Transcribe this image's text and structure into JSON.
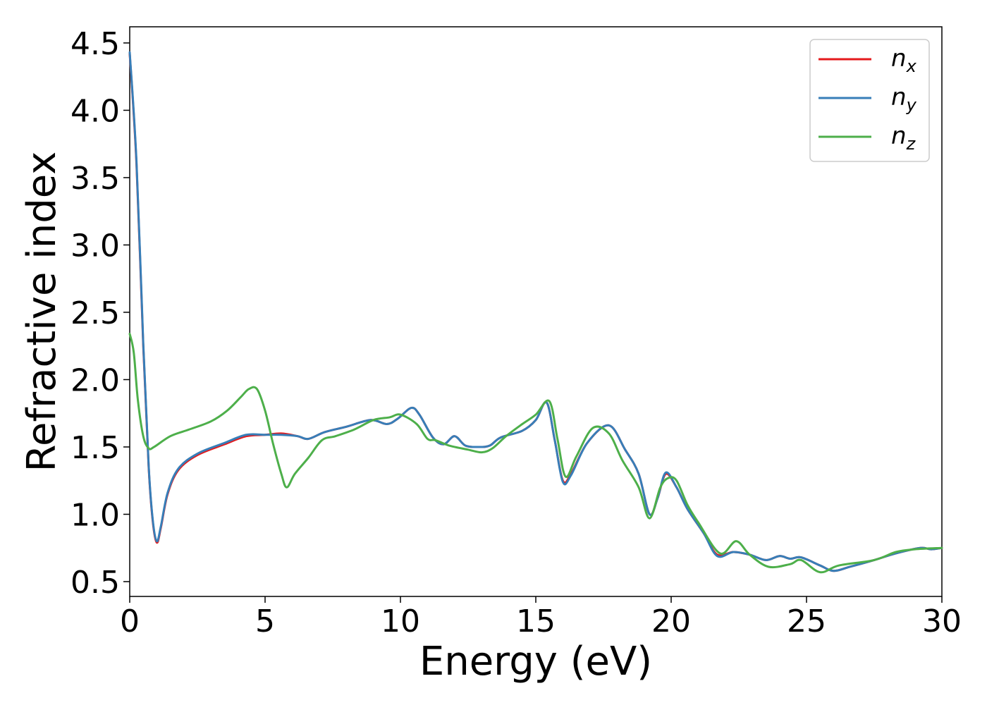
{
  "chart_data": {
    "type": "line",
    "xlabel": "Energy (eV)",
    "ylabel": "Refractive index",
    "xlim": [
      0,
      30
    ],
    "ylim": [
      0.39,
      4.62
    ],
    "xticks": [
      0,
      5,
      10,
      15,
      20,
      25,
      30
    ],
    "yticks": [
      0.5,
      1.0,
      1.5,
      2.0,
      2.5,
      3.0,
      3.5,
      4.0,
      4.5
    ],
    "grid": false,
    "legend_position": "top-right",
    "series": [
      {
        "name": "n",
        "subscript": "x",
        "color": "#e41a1c",
        "points": [
          [
            0,
            4.42
          ],
          [
            0.25,
            3.6
          ],
          [
            0.5,
            2.25
          ],
          [
            0.7,
            1.35
          ],
          [
            0.85,
            0.95
          ],
          [
            1.0,
            0.79
          ],
          [
            1.15,
            0.9
          ],
          [
            1.4,
            1.15
          ],
          [
            1.8,
            1.33
          ],
          [
            2.5,
            1.44
          ],
          [
            3.5,
            1.52
          ],
          [
            4.3,
            1.58
          ],
          [
            5.0,
            1.59
          ],
          [
            5.6,
            1.6
          ],
          [
            6.2,
            1.58
          ],
          [
            6.6,
            1.56
          ],
          [
            7.2,
            1.61
          ],
          [
            8.0,
            1.65
          ],
          [
            8.9,
            1.7
          ],
          [
            9.5,
            1.67
          ],
          [
            9.9,
            1.71
          ],
          [
            10.4,
            1.79
          ],
          [
            10.7,
            1.74
          ],
          [
            11.2,
            1.57
          ],
          [
            11.6,
            1.52
          ],
          [
            12.0,
            1.58
          ],
          [
            12.4,
            1.51
          ],
          [
            12.9,
            1.5
          ],
          [
            13.3,
            1.51
          ],
          [
            13.7,
            1.57
          ],
          [
            14.5,
            1.62
          ],
          [
            15.0,
            1.7
          ],
          [
            15.4,
            1.83
          ],
          [
            15.7,
            1.55
          ],
          [
            16.0,
            1.25
          ],
          [
            16.3,
            1.3
          ],
          [
            16.9,
            1.53
          ],
          [
            17.7,
            1.66
          ],
          [
            18.3,
            1.48
          ],
          [
            18.8,
            1.3
          ],
          [
            19.2,
            1.0
          ],
          [
            19.5,
            1.12
          ],
          [
            19.8,
            1.3
          ],
          [
            20.2,
            1.2
          ],
          [
            20.6,
            1.04
          ],
          [
            21.2,
            0.86
          ],
          [
            21.7,
            0.7
          ],
          [
            22.3,
            0.72
          ],
          [
            22.9,
            0.7
          ],
          [
            23.5,
            0.66
          ],
          [
            24.0,
            0.69
          ],
          [
            24.4,
            0.67
          ],
          [
            24.8,
            0.68
          ],
          [
            25.5,
            0.62
          ],
          [
            26.0,
            0.58
          ],
          [
            26.6,
            0.61
          ],
          [
            27.5,
            0.66
          ],
          [
            28.3,
            0.71
          ],
          [
            29.2,
            0.75
          ],
          [
            29.6,
            0.74
          ],
          [
            30.0,
            0.75
          ]
        ]
      },
      {
        "name": "n",
        "subscript": "y",
        "color": "#377eb8",
        "points": [
          [
            0,
            4.43
          ],
          [
            0.25,
            3.62
          ],
          [
            0.5,
            2.27
          ],
          [
            0.7,
            1.36
          ],
          [
            0.85,
            0.96
          ],
          [
            1.0,
            0.8
          ],
          [
            1.15,
            0.91
          ],
          [
            1.4,
            1.16
          ],
          [
            1.8,
            1.34
          ],
          [
            2.5,
            1.45
          ],
          [
            3.5,
            1.53
          ],
          [
            4.3,
            1.59
          ],
          [
            5.0,
            1.59
          ],
          [
            5.6,
            1.59
          ],
          [
            6.2,
            1.58
          ],
          [
            6.6,
            1.56
          ],
          [
            7.2,
            1.61
          ],
          [
            8.0,
            1.65
          ],
          [
            8.9,
            1.7
          ],
          [
            9.5,
            1.67
          ],
          [
            9.9,
            1.71
          ],
          [
            10.4,
            1.79
          ],
          [
            10.7,
            1.74
          ],
          [
            11.2,
            1.57
          ],
          [
            11.6,
            1.52
          ],
          [
            12.0,
            1.58
          ],
          [
            12.4,
            1.51
          ],
          [
            12.9,
            1.5
          ],
          [
            13.3,
            1.51
          ],
          [
            13.7,
            1.57
          ],
          [
            14.5,
            1.62
          ],
          [
            15.0,
            1.7
          ],
          [
            15.4,
            1.83
          ],
          [
            15.7,
            1.55
          ],
          [
            16.0,
            1.24
          ],
          [
            16.3,
            1.29
          ],
          [
            16.9,
            1.53
          ],
          [
            17.7,
            1.66
          ],
          [
            18.3,
            1.48
          ],
          [
            18.8,
            1.3
          ],
          [
            19.2,
            1.0
          ],
          [
            19.5,
            1.12
          ],
          [
            19.8,
            1.31
          ],
          [
            20.2,
            1.2
          ],
          [
            20.6,
            1.04
          ],
          [
            21.2,
            0.86
          ],
          [
            21.7,
            0.69
          ],
          [
            22.3,
            0.72
          ],
          [
            22.9,
            0.7
          ],
          [
            23.5,
            0.66
          ],
          [
            24.0,
            0.69
          ],
          [
            24.4,
            0.67
          ],
          [
            24.8,
            0.68
          ],
          [
            25.5,
            0.62
          ],
          [
            26.0,
            0.58
          ],
          [
            26.6,
            0.61
          ],
          [
            27.5,
            0.66
          ],
          [
            28.3,
            0.71
          ],
          [
            29.2,
            0.75
          ],
          [
            29.6,
            0.74
          ],
          [
            30.0,
            0.75
          ]
        ]
      },
      {
        "name": "n",
        "subscript": "z",
        "color": "#4daf4a",
        "points": [
          [
            0,
            2.34
          ],
          [
            0.15,
            2.2
          ],
          [
            0.3,
            1.85
          ],
          [
            0.5,
            1.58
          ],
          [
            0.7,
            1.49
          ],
          [
            0.9,
            1.5
          ],
          [
            1.5,
            1.58
          ],
          [
            2.2,
            1.63
          ],
          [
            3.0,
            1.69
          ],
          [
            3.6,
            1.77
          ],
          [
            4.1,
            1.87
          ],
          [
            4.4,
            1.93
          ],
          [
            4.7,
            1.93
          ],
          [
            5.0,
            1.77
          ],
          [
            5.3,
            1.52
          ],
          [
            5.6,
            1.3
          ],
          [
            5.8,
            1.2
          ],
          [
            6.1,
            1.3
          ],
          [
            6.6,
            1.42
          ],
          [
            7.1,
            1.55
          ],
          [
            7.6,
            1.58
          ],
          [
            8.3,
            1.63
          ],
          [
            9.0,
            1.7
          ],
          [
            9.6,
            1.72
          ],
          [
            10.0,
            1.74
          ],
          [
            10.6,
            1.67
          ],
          [
            11.0,
            1.56
          ],
          [
            11.3,
            1.55
          ],
          [
            11.8,
            1.51
          ],
          [
            12.5,
            1.48
          ],
          [
            13.0,
            1.46
          ],
          [
            13.4,
            1.49
          ],
          [
            13.9,
            1.58
          ],
          [
            14.5,
            1.67
          ],
          [
            15.0,
            1.74
          ],
          [
            15.5,
            1.84
          ],
          [
            15.8,
            1.56
          ],
          [
            16.1,
            1.28
          ],
          [
            16.5,
            1.43
          ],
          [
            17.1,
            1.64
          ],
          [
            17.7,
            1.6
          ],
          [
            18.2,
            1.4
          ],
          [
            18.8,
            1.2
          ],
          [
            19.2,
            0.97
          ],
          [
            19.6,
            1.2
          ],
          [
            19.9,
            1.27
          ],
          [
            20.2,
            1.25
          ],
          [
            20.6,
            1.07
          ],
          [
            21.0,
            0.94
          ],
          [
            21.8,
            0.71
          ],
          [
            22.4,
            0.8
          ],
          [
            22.9,
            0.7
          ],
          [
            23.6,
            0.61
          ],
          [
            24.4,
            0.63
          ],
          [
            24.8,
            0.66
          ],
          [
            25.5,
            0.57
          ],
          [
            26.2,
            0.62
          ],
          [
            27.5,
            0.66
          ],
          [
            28.3,
            0.72
          ],
          [
            29.0,
            0.74
          ],
          [
            30.0,
            0.75
          ]
        ]
      }
    ]
  }
}
